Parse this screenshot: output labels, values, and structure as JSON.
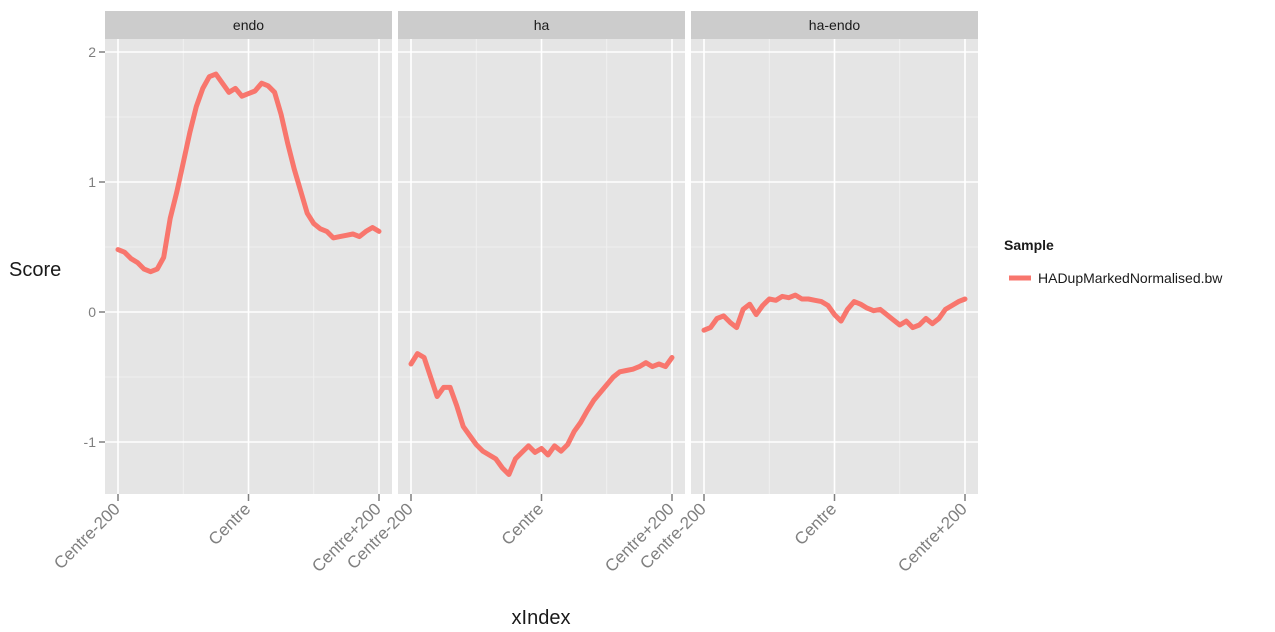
{
  "chart_data": {
    "type": "line",
    "ylabel": "Score",
    "xlabel": "xIndex",
    "x_tick_labels": [
      "Centre-200",
      "Centre",
      "Centre+200"
    ],
    "xlim": [
      -200,
      200
    ],
    "ylim": [
      -1.4,
      2.1
    ],
    "y_ticks": [
      -1,
      0,
      1,
      2
    ],
    "grid": true,
    "legend": {
      "title": "Sample",
      "position": "right",
      "entries": [
        "HADupMarkedNormalised.bw"
      ]
    },
    "series_color": "#f8766d",
    "panels": [
      {
        "strip": "endo",
        "series": [
          {
            "name": "HADupMarkedNormalised.bw",
            "x": [
              -200,
              -190,
              -180,
              -170,
              -160,
              -150,
              -140,
              -130,
              -120,
              -110,
              -100,
              -90,
              -80,
              -70,
              -60,
              -50,
              -40,
              -30,
              -20,
              -10,
              0,
              10,
              20,
              30,
              40,
              50,
              60,
              70,
              80,
              90,
              100,
              110,
              120,
              130,
              140,
              150,
              160,
              170,
              180,
              190,
              200
            ],
            "values": [
              0.48,
              0.46,
              0.41,
              0.38,
              0.33,
              0.31,
              0.33,
              0.42,
              0.72,
              0.92,
              1.15,
              1.38,
              1.58,
              1.72,
              1.81,
              1.83,
              1.76,
              1.69,
              1.72,
              1.66,
              1.68,
              1.7,
              1.76,
              1.74,
              1.69,
              1.52,
              1.3,
              1.1,
              0.93,
              0.76,
              0.68,
              0.64,
              0.62,
              0.57,
              0.58,
              0.59,
              0.6,
              0.58,
              0.62,
              0.65,
              0.62
            ]
          }
        ]
      },
      {
        "strip": "ha",
        "series": [
          {
            "name": "HADupMarkedNormalised.bw",
            "x": [
              -200,
              -190,
              -180,
              -170,
              -160,
              -150,
              -140,
              -130,
              -120,
              -110,
              -100,
              -90,
              -80,
              -70,
              -60,
              -50,
              -40,
              -30,
              -20,
              -10,
              0,
              10,
              20,
              30,
              40,
              50,
              60,
              70,
              80,
              90,
              100,
              110,
              120,
              130,
              140,
              150,
              160,
              170,
              180,
              190,
              200
            ],
            "values": [
              -0.4,
              -0.32,
              -0.35,
              -0.5,
              -0.65,
              -0.58,
              -0.58,
              -0.72,
              -0.88,
              -0.95,
              -1.02,
              -1.07,
              -1.1,
              -1.13,
              -1.2,
              -1.25,
              -1.13,
              -1.08,
              -1.03,
              -1.08,
              -1.05,
              -1.1,
              -1.03,
              -1.07,
              -1.02,
              -0.92,
              -0.85,
              -0.76,
              -0.68,
              -0.62,
              -0.56,
              -0.5,
              -0.46,
              -0.45,
              -0.44,
              -0.42,
              -0.39,
              -0.42,
              -0.4,
              -0.42,
              -0.35
            ]
          }
        ]
      },
      {
        "strip": "ha-endo",
        "series": [
          {
            "name": "HADupMarkedNormalised.bw",
            "x": [
              -200,
              -190,
              -180,
              -170,
              -160,
              -150,
              -140,
              -130,
              -120,
              -110,
              -100,
              -90,
              -80,
              -70,
              -60,
              -50,
              -40,
              -30,
              -20,
              -10,
              0,
              10,
              20,
              30,
              40,
              50,
              60,
              70,
              80,
              90,
              100,
              110,
              120,
              130,
              140,
              150,
              160,
              170,
              180,
              190,
              200
            ],
            "values": [
              -0.14,
              -0.12,
              -0.05,
              -0.03,
              -0.08,
              -0.12,
              0.02,
              0.06,
              -0.02,
              0.05,
              0.1,
              0.09,
              0.12,
              0.11,
              0.13,
              0.1,
              0.1,
              0.09,
              0.08,
              0.05,
              -0.02,
              -0.07,
              0.02,
              0.08,
              0.06,
              0.03,
              0.01,
              0.02,
              -0.02,
              -0.06,
              -0.1,
              -0.07,
              -0.12,
              -0.1,
              -0.05,
              -0.09,
              -0.05,
              0.02,
              0.05,
              0.08,
              0.1
            ]
          }
        ]
      }
    ]
  }
}
